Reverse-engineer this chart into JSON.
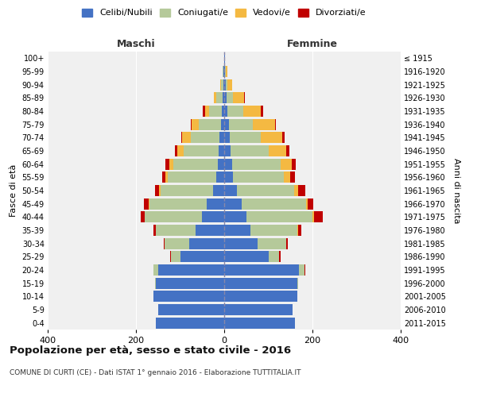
{
  "age_groups": [
    "0-4",
    "5-9",
    "10-14",
    "15-19",
    "20-24",
    "25-29",
    "30-34",
    "35-39",
    "40-44",
    "45-49",
    "50-54",
    "55-59",
    "60-64",
    "65-69",
    "70-74",
    "75-79",
    "80-84",
    "85-89",
    "90-94",
    "95-99",
    "100+"
  ],
  "birth_years": [
    "2011-2015",
    "2006-2010",
    "2001-2005",
    "1996-2000",
    "1991-1995",
    "1986-1990",
    "1981-1985",
    "1976-1980",
    "1971-1975",
    "1966-1970",
    "1961-1965",
    "1956-1960",
    "1951-1955",
    "1946-1950",
    "1941-1945",
    "1936-1940",
    "1931-1935",
    "1926-1930",
    "1921-1925",
    "1916-1920",
    "≤ 1915"
  ],
  "male": {
    "celibe": [
      155,
      150,
      160,
      155,
      150,
      100,
      80,
      65,
      50,
      40,
      25,
      18,
      15,
      12,
      10,
      8,
      5,
      3,
      2,
      1,
      0
    ],
    "coniugato": [
      0,
      0,
      0,
      2,
      10,
      20,
      55,
      90,
      130,
      130,
      120,
      110,
      100,
      80,
      65,
      50,
      30,
      15,
      5,
      2,
      0
    ],
    "vedovo": [
      0,
      0,
      0,
      0,
      0,
      0,
      0,
      0,
      1,
      2,
      3,
      5,
      10,
      15,
      20,
      15,
      8,
      5,
      2,
      0,
      0
    ],
    "divorziato": [
      0,
      0,
      0,
      0,
      1,
      2,
      2,
      5,
      8,
      10,
      8,
      8,
      8,
      5,
      3,
      3,
      5,
      0,
      0,
      0,
      0
    ]
  },
  "female": {
    "nubile": [
      160,
      155,
      165,
      165,
      170,
      100,
      75,
      60,
      50,
      40,
      28,
      20,
      18,
      15,
      12,
      10,
      8,
      5,
      3,
      2,
      1
    ],
    "coniugata": [
      0,
      0,
      0,
      2,
      12,
      25,
      65,
      105,
      150,
      145,
      130,
      115,
      110,
      85,
      70,
      55,
      35,
      15,
      5,
      2,
      0
    ],
    "vedova": [
      0,
      0,
      0,
      0,
      0,
      0,
      1,
      2,
      3,
      5,
      10,
      15,
      25,
      40,
      50,
      50,
      40,
      25,
      10,
      3,
      1
    ],
    "divorziata": [
      0,
      0,
      0,
      0,
      2,
      3,
      3,
      8,
      20,
      12,
      15,
      10,
      10,
      8,
      5,
      3,
      5,
      2,
      0,
      0,
      0
    ]
  },
  "colors": {
    "celibe_nubile": "#4472c4",
    "coniugato_a": "#b5c99a",
    "vedovo_a": "#f4b942",
    "divorziato_a": "#c00000"
  },
  "title": "Popolazione per età, sesso e stato civile - 2016",
  "subtitle": "COMUNE DI CURTI (CE) - Dati ISTAT 1° gennaio 2016 - Elaborazione TUTTITALIA.IT",
  "ylabel_left": "Fasce di età",
  "ylabel_right": "Anni di nascita",
  "xlim": 400,
  "maschi_label": "Maschi",
  "femmine_label": "Femmine",
  "legend_labels": [
    "Celibi/Nubili",
    "Coniugati/e",
    "Vedovi/e",
    "Divorziati/e"
  ],
  "bg_color": "#f0f0f0"
}
